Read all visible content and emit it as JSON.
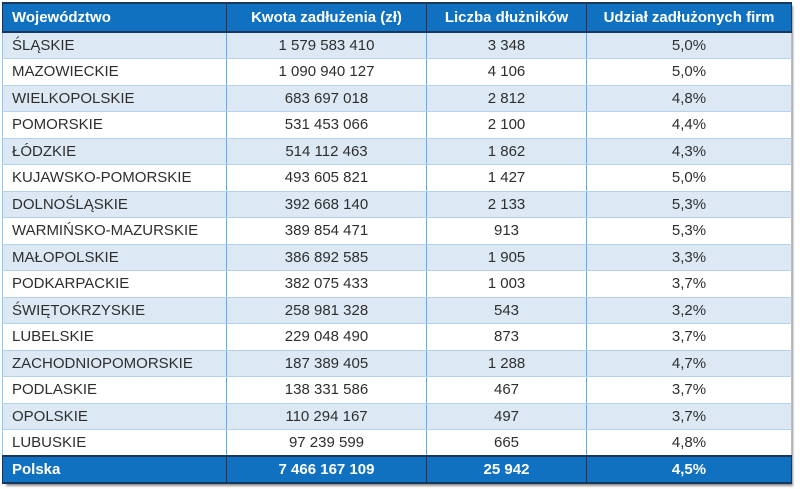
{
  "colors": {
    "header_bg": "#1171C1",
    "row_alt_bg": "#DCE9F5",
    "row_bg": "#FFFFFF",
    "dark_border": "#17375E",
    "vertical_divider": "#76A5D8",
    "horizontal_divider": "#B4D2ED",
    "outer_border": "#9DC3E6",
    "header_text": "#FFFFFF",
    "body_text": "#2E2E2E"
  },
  "table": {
    "columns": [
      "Województwo",
      "Kwota zadłużenia (zł)",
      "Liczba dłużników",
      "Udział zadłużonych firm"
    ],
    "rows": [
      [
        "ŚLĄSKIE",
        "1 579 583 410",
        "3 348",
        "5,0%"
      ],
      [
        "MAZOWIECKIE",
        "1 090 940 127",
        "4 106",
        "5,0%"
      ],
      [
        "WIELKOPOLSKIE",
        "683 697 018",
        "2 812",
        "4,8%"
      ],
      [
        "POMORSKIE",
        "531 453 066",
        "2 100",
        "4,4%"
      ],
      [
        "ŁÓDZKIE",
        "514 112 463",
        "1 862",
        "4,3%"
      ],
      [
        "KUJAWSKO-POMORSKIE",
        "493 605 821",
        "1 427",
        "5,0%"
      ],
      [
        "DOLNOŚLĄSKIE",
        "392 668 140",
        "2 133",
        "5,3%"
      ],
      [
        "WARMIŃSKO-MAZURSKIE",
        "389 854 471",
        "913",
        "5,3%"
      ],
      [
        "MAŁOPOLSKIE",
        "386 892 585",
        "1 905",
        "3,3%"
      ],
      [
        "PODKARPACKIE",
        "382 075 433",
        "1 003",
        "3,7%"
      ],
      [
        "ŚWIĘTOKRZYSKIE",
        "258 981 328",
        "543",
        "3,2%"
      ],
      [
        "LUBELSKIE",
        "229 048 490",
        "873",
        "3,7%"
      ],
      [
        "ZACHODNIOPOMORSKIE",
        "187 389 405",
        "1 288",
        "4,7%"
      ],
      [
        "PODLASKIE",
        "138 331 586",
        "467",
        "3,7%"
      ],
      [
        "OPOLSKIE",
        "110 294 167",
        "497",
        "3,7%"
      ],
      [
        "LUBUSKIE",
        "97 239 599",
        "665",
        "4,8%"
      ]
    ],
    "total": [
      "Polska",
      "7 466 167 109",
      "25 942",
      "4,5%"
    ]
  },
  "chart_data": {
    "type": "table",
    "title": "",
    "columns": [
      "Województwo",
      "Kwota zadłużenia (zł)",
      "Liczba dłużników",
      "Udział zadłużonych firm"
    ],
    "rows": [
      {
        "region": "ŚLĄSKIE",
        "debt_pln": 1579583410,
        "debtors": 3348,
        "share_pct": 5.0
      },
      {
        "region": "MAZOWIECKIE",
        "debt_pln": 1090940127,
        "debtors": 4106,
        "share_pct": 5.0
      },
      {
        "region": "WIELKOPOLSKIE",
        "debt_pln": 683697018,
        "debtors": 2812,
        "share_pct": 4.8
      },
      {
        "region": "POMORSKIE",
        "debt_pln": 531453066,
        "debtors": 2100,
        "share_pct": 4.4
      },
      {
        "region": "ŁÓDZKIE",
        "debt_pln": 514112463,
        "debtors": 1862,
        "share_pct": 4.3
      },
      {
        "region": "KUJAWSKO-POMORSKIE",
        "debt_pln": 493605821,
        "debtors": 1427,
        "share_pct": 5.0
      },
      {
        "region": "DOLNOŚLĄSKIE",
        "debt_pln": 392668140,
        "debtors": 2133,
        "share_pct": 5.3
      },
      {
        "region": "WARMIŃSKO-MAZURSKIE",
        "debt_pln": 389854471,
        "debtors": 913,
        "share_pct": 5.3
      },
      {
        "region": "MAŁOPOLSKIE",
        "debt_pln": 386892585,
        "debtors": 1905,
        "share_pct": 3.3
      },
      {
        "region": "PODKARPACKIE",
        "debt_pln": 382075433,
        "debtors": 1003,
        "share_pct": 3.7
      },
      {
        "region": "ŚWIĘTOKRZYSKIE",
        "debt_pln": 258981328,
        "debtors": 543,
        "share_pct": 3.2
      },
      {
        "region": "LUBELSKIE",
        "debt_pln": 229048490,
        "debtors": 873,
        "share_pct": 3.7
      },
      {
        "region": "ZACHODNIOPOMORSKIE",
        "debt_pln": 187389405,
        "debtors": 1288,
        "share_pct": 4.7
      },
      {
        "region": "PODLASKIE",
        "debt_pln": 138331586,
        "debtors": 467,
        "share_pct": 3.7
      },
      {
        "region": "OPOLSKIE",
        "debt_pln": 110294167,
        "debtors": 497,
        "share_pct": 3.7
      },
      {
        "region": "LUBUSKIE",
        "debt_pln": 97239599,
        "debtors": 665,
        "share_pct": 4.8
      },
      {
        "region": "Polska",
        "debt_pln": 7466167109,
        "debtors": 25942,
        "share_pct": 4.5
      }
    ]
  }
}
